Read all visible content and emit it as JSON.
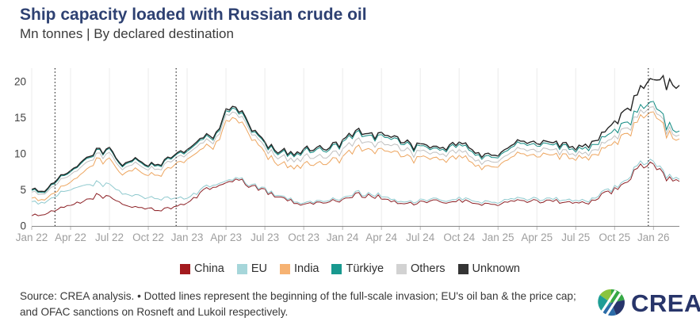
{
  "header": {
    "title": "Ship capacity loaded with Russian crude oil",
    "subtitle": "Mn tonnes | By declared destination"
  },
  "chart_data": {
    "type": "area",
    "stacked": true,
    "title": "Ship capacity loaded with Russian crude oil",
    "unit_label": "Mn tonnes",
    "grid": "vertical",
    "legend_position": "bottom",
    "ylim": [
      0,
      21.8
    ],
    "y_ticks": [
      0,
      5,
      10,
      15,
      20
    ],
    "x_ticks": [
      {
        "label": "Jan 22",
        "m": 0
      },
      {
        "label": "Apr 22",
        "m": 3
      },
      {
        "label": "Jul 22",
        "m": 6
      },
      {
        "label": "Oct 22",
        "m": 9
      },
      {
        "label": "Jan 23",
        "m": 12
      },
      {
        "label": "Apr 23",
        "m": 15
      },
      {
        "label": "Jul 23",
        "m": 18
      },
      {
        "label": "Oct 23",
        "m": 21
      },
      {
        "label": "Jan 24",
        "m": 24
      },
      {
        "label": "Apr 24",
        "m": 27
      },
      {
        "label": "Jul 24",
        "m": 30
      },
      {
        "label": "Oct 24",
        "m": 33
      },
      {
        "label": "Jan 25",
        "m": 36
      },
      {
        "label": "Apr 25",
        "m": 39
      },
      {
        "label": "Jul 25",
        "m": 42
      },
      {
        "label": "Oct 25",
        "m": 45
      },
      {
        "label": "Jan 26",
        "m": 48
      }
    ],
    "months": [
      "2022-01",
      "2022-02",
      "2022-03",
      "2022-04",
      "2022-05",
      "2022-06",
      "2022-07",
      "2022-08",
      "2022-09",
      "2022-10",
      "2022-11",
      "2022-12",
      "2023-01",
      "2023-02",
      "2023-03",
      "2023-04",
      "2023-05",
      "2023-06",
      "2023-07",
      "2023-08",
      "2023-09",
      "2023-10",
      "2023-11",
      "2023-12",
      "2024-01",
      "2024-02",
      "2024-03",
      "2024-04",
      "2024-05",
      "2024-06",
      "2024-07",
      "2024-08",
      "2024-09",
      "2024-10",
      "2024-11",
      "2024-12",
      "2025-01",
      "2025-02",
      "2025-03",
      "2025-04",
      "2025-05",
      "2025-06",
      "2025-07",
      "2025-08",
      "2025-09",
      "2025-10",
      "2025-11",
      "2025-12",
      "2026-01",
      "2026-02",
      "2026-03"
    ],
    "series": [
      {
        "name": "China",
        "stack_index": 0,
        "color": "#a31a1e",
        "fill": "#b2494d",
        "stroke": "#8c2025",
        "values": [
          1.5,
          1.6,
          2.3,
          2.8,
          3.4,
          4.2,
          4.0,
          3.0,
          2.6,
          2.4,
          2.2,
          2.6,
          3.2,
          4.5,
          5.5,
          6.0,
          6.2,
          5.5,
          4.8,
          4.2,
          3.4,
          3.0,
          3.2,
          3.4,
          3.6,
          4.4,
          4.2,
          4.0,
          3.3,
          3.0,
          3.2,
          3.4,
          3.3,
          3.5,
          3.2,
          3.0,
          3.0,
          3.3,
          3.5,
          3.4,
          3.6,
          3.3,
          3.1,
          3.3,
          4.2,
          5.0,
          6.5,
          8.0,
          8.8,
          6.8,
          5.8
        ]
      },
      {
        "name": "EU",
        "stack_index": 1,
        "color": "#a6d6da",
        "fill": "#b6dee1",
        "stroke": "#8fc9ce",
        "values": [
          1.8,
          1.6,
          2.0,
          2.2,
          2.2,
          1.8,
          1.6,
          1.5,
          1.7,
          1.5,
          1.6,
          1.2,
          0.7,
          0.4,
          0.3,
          0.25,
          0.2,
          0.2,
          0.2,
          0.2,
          0.2,
          0.2,
          0.2,
          0.2,
          0.25,
          0.25,
          0.25,
          0.3,
          0.25,
          0.25,
          0.25,
          0.25,
          0.25,
          0.3,
          0.3,
          0.3,
          0.3,
          0.3,
          0.3,
          0.3,
          0.3,
          0.3,
          0.3,
          0.3,
          0.3,
          0.3,
          0.35,
          0.4,
          0.4,
          0.35,
          0.3
        ]
      },
      {
        "name": "India",
        "stack_index": 2,
        "color": "#f6b272",
        "fill": "#f9ca95",
        "stroke": "#eda55f",
        "values": [
          0.5,
          0.4,
          0.6,
          1.0,
          1.8,
          3.2,
          3.5,
          2.5,
          3.8,
          3.2,
          3.5,
          4.5,
          5.2,
          6.0,
          5.2,
          7.8,
          8.3,
          6.5,
          5.0,
          4.3,
          4.6,
          5.2,
          5.4,
          5.2,
          5.6,
          6.2,
          6.0,
          6.4,
          6.6,
          6.2,
          5.8,
          5.6,
          5.8,
          5.7,
          5.2,
          4.8,
          5.0,
          5.6,
          6.0,
          6.2,
          6.2,
          6.0,
          5.9,
          6.0,
          6.0,
          6.3,
          6.0,
          6.5,
          7.0,
          5.8,
          5.3
        ]
      },
      {
        "name": "Türkiye",
        "stack_index": 4,
        "color": "#18998f",
        "fill": "#2ba49b",
        "stroke": "#0f8a81",
        "values": [
          0.3,
          0.25,
          0.4,
          0.4,
          0.5,
          0.5,
          0.5,
          0.4,
          0.5,
          0.4,
          0.5,
          0.4,
          0.4,
          0.5,
          0.5,
          0.5,
          0.5,
          0.4,
          0.5,
          0.6,
          0.7,
          0.8,
          0.9,
          0.9,
          1.0,
          1.0,
          0.9,
          1.0,
          0.9,
          0.8,
          0.7,
          0.6,
          0.7,
          0.8,
          0.8,
          0.7,
          0.6,
          0.7,
          0.8,
          0.8,
          0.7,
          0.7,
          0.6,
          0.7,
          0.8,
          0.9,
          0.8,
          0.7,
          0.7,
          0.6,
          0.55
        ]
      },
      {
        "name": "Others",
        "stack_index": 3,
        "color": "#d2d2d2",
        "fill": "#dcdcdc",
        "stroke": "#c0c0c0",
        "values": [
          0.9,
          0.8,
          1.0,
          1.0,
          1.0,
          0.7,
          0.8,
          0.7,
          0.8,
          0.8,
          0.9,
          0.8,
          0.8,
          0.8,
          0.7,
          0.8,
          0.8,
          0.7,
          0.8,
          0.9,
          1.0,
          1.0,
          0.9,
          0.9,
          1.0,
          1.1,
          1.0,
          0.9,
          0.9,
          0.9,
          0.8,
          0.7,
          0.8,
          0.8,
          0.7,
          0.7,
          0.7,
          0.7,
          0.7,
          0.7,
          0.7,
          0.6,
          0.6,
          0.6,
          0.7,
          0.8,
          0.8,
          0.7,
          0.65,
          0.6,
          0.55
        ]
      },
      {
        "name": "Unknown",
        "stack_index": 5,
        "color": "#343434",
        "fill": "#595959",
        "stroke": "#262626",
        "values": [
          0.15,
          0.15,
          0.15,
          0.15,
          0.15,
          0.15,
          0.15,
          0.15,
          0.15,
          0.15,
          0.15,
          0.15,
          0.2,
          0.2,
          0.2,
          0.25,
          0.25,
          0.2,
          0.2,
          0.2,
          0.2,
          0.25,
          0.25,
          0.25,
          0.25,
          0.3,
          0.3,
          0.3,
          0.25,
          0.25,
          0.25,
          0.25,
          0.25,
          0.3,
          0.3,
          0.3,
          0.3,
          0.3,
          0.3,
          0.3,
          0.3,
          0.3,
          0.3,
          0.4,
          0.6,
          1.2,
          1.8,
          2.5,
          3.2,
          5.5,
          6.8
        ]
      }
    ],
    "dotted_event_lines": [
      {
        "m": 1.8,
        "label": "Beginning of the full-scale invasion"
      },
      {
        "m": 11.15,
        "label": "EU's oil ban & the price cap"
      },
      {
        "m": 47.6,
        "label": "OFAC sanctions on Rosneft and Lukoil"
      }
    ]
  },
  "footer": {
    "source_text": "Source: CREA analysis. • Dotted lines represent the beginning of the full-scale invasion; EU's oil ban & the price cap; and OFAC sanctions on Rosneft and Lukoil respectively."
  },
  "logo": {
    "text": "CREA"
  }
}
